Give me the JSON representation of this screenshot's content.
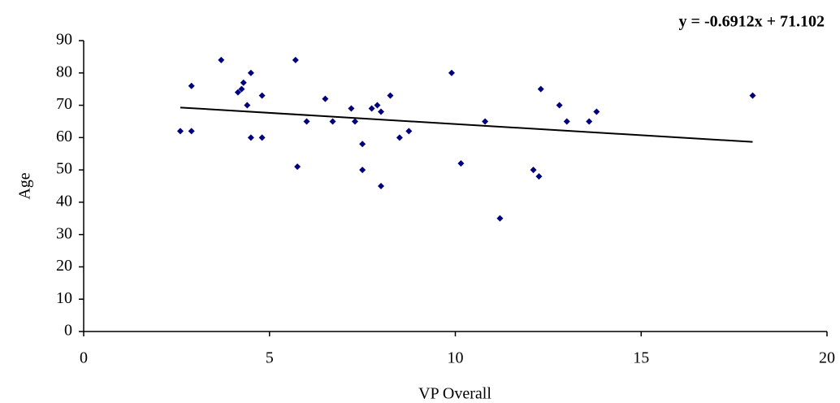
{
  "chart_data": {
    "type": "scatter",
    "x_label": "VP Overall",
    "y_label": "Age",
    "x": [
      2.6,
      2.9,
      2.9,
      3.7,
      4.15,
      4.25,
      4.3,
      4.4,
      4.5,
      4.5,
      4.8,
      4.8,
      5.7,
      5.75,
      6.0,
      6.5,
      6.7,
      7.2,
      7.3,
      7.5,
      7.5,
      7.75,
      7.9,
      8.0,
      8.0,
      8.25,
      8.5,
      8.75,
      9.9,
      10.15,
      10.8,
      11.2,
      12.1,
      12.25,
      12.3,
      12.8,
      13.0,
      13.6,
      13.8,
      18.0
    ],
    "values": [
      62,
      62,
      76,
      84,
      74,
      75,
      77,
      70,
      80,
      60,
      73,
      60,
      84,
      51,
      65,
      72,
      65,
      69,
      65,
      58,
      50,
      69,
      70,
      68,
      45,
      73,
      60,
      62,
      80,
      52,
      65,
      35,
      50,
      48,
      75,
      70,
      65,
      65,
      68,
      73
    ],
    "color": "#00007f",
    "trendline": {
      "slope": -0.6912,
      "intercept": 71.102,
      "label": "y = -0.6912x + 71.102",
      "color": "#000000"
    },
    "xlim": [
      0,
      20
    ],
    "xticks": [
      0,
      5,
      10,
      15,
      20
    ],
    "ylim": [
      0,
      90
    ],
    "yticks": [
      0,
      10,
      20,
      30,
      40,
      50,
      60,
      70,
      80,
      90
    ]
  }
}
